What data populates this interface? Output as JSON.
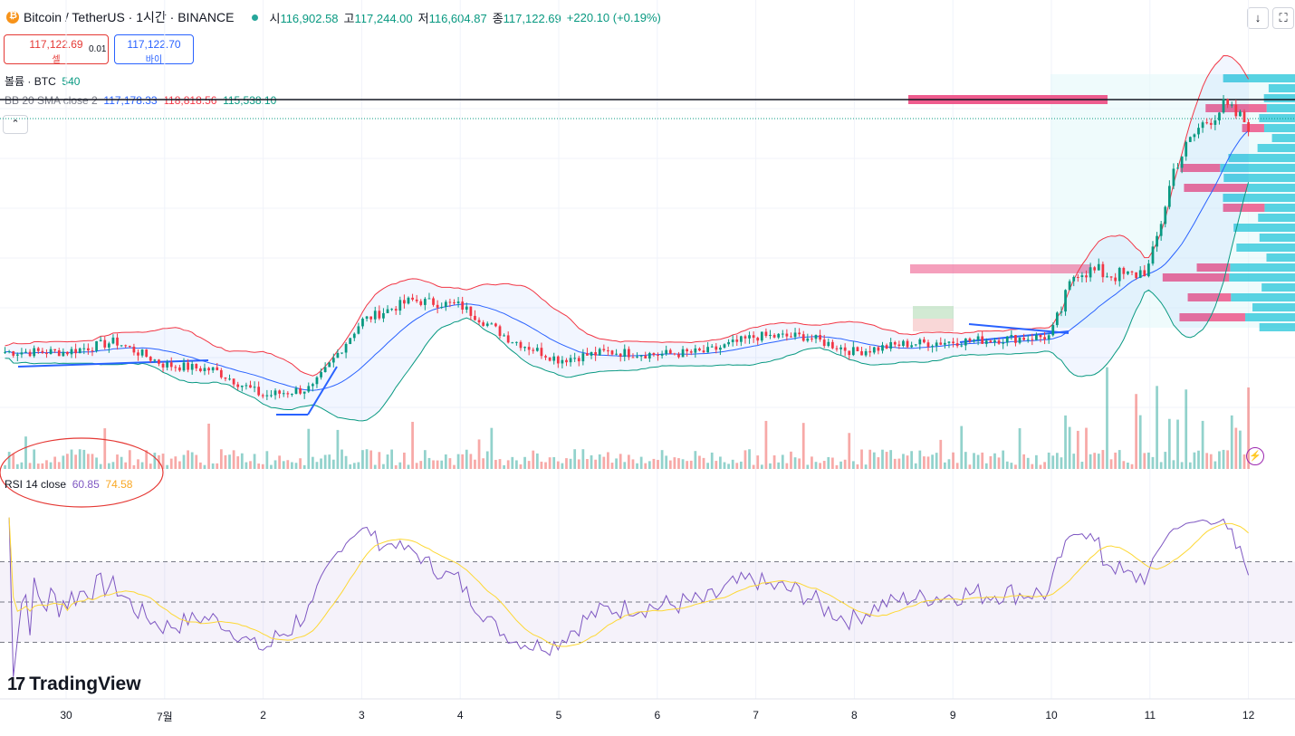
{
  "header": {
    "symbol": "Bitcoin / TetherUS · 1시간 · BINANCE",
    "open_label": "시",
    "open": "116,902.58",
    "high_label": "고",
    "high": "117,244.00",
    "low_label": "저",
    "low": "116,604.87",
    "close_label": "종",
    "close": "117,122.69",
    "change": "+220.10 (+0.19%)"
  },
  "trade": {
    "sell_price": "117,122.69",
    "sell_label": "셀",
    "spread": "0.01",
    "buy_price": "117,122.70",
    "buy_label": "바이"
  },
  "indicators": {
    "volume_label": "볼륨 · BTC",
    "volume_value": "540",
    "bb_label": "BB 20 SMA close 2",
    "bb_basis": "117,178.33",
    "bb_upper": "118,818.56",
    "bb_lower": "115,538.10",
    "rsi_label": "RSI 14 close",
    "rsi_value": "60.85",
    "rsi_ma": "74.58"
  },
  "icons": {
    "download": "download-icon",
    "fullscreen": "fullscreen-icon",
    "collapse": "chevron-up-icon",
    "flash": "lightning-icon"
  },
  "brand": {
    "name": "TradingView"
  },
  "colors": {
    "up": "#089981",
    "down": "#f23645",
    "bb_upper": "#f23645",
    "bb_lower": "#089981",
    "bb_basis": "#2962ff",
    "rsi": "#7e57c2",
    "rsi_ma": "#fdd835",
    "vp_up": "#26c6da",
    "vp_down": "#ec407a"
  },
  "chart_data": {
    "type": "candlestick",
    "x_ticks": [
      "30",
      "7월",
      "2",
      "3",
      "4",
      "5",
      "6",
      "7",
      "8",
      "9",
      "10",
      "11",
      "12"
    ],
    "price_anchor": [
      {
        "day": 0.0,
        "close": 108300
      },
      {
        "day": 0.5,
        "close": 108700
      },
      {
        "day": 1.0,
        "close": 107800
      },
      {
        "day": 1.5,
        "close": 107600
      },
      {
        "day": 2.0,
        "close": 106600
      },
      {
        "day": 2.5,
        "close": 106900
      },
      {
        "day": 3.0,
        "close": 109500
      },
      {
        "day": 3.5,
        "close": 110300
      },
      {
        "day": 4.0,
        "close": 110100
      },
      {
        "day": 4.5,
        "close": 108800
      },
      {
        "day": 5.0,
        "close": 108000
      },
      {
        "day": 5.5,
        "close": 108300
      },
      {
        "day": 6.0,
        "close": 108200
      },
      {
        "day": 6.5,
        "close": 108300
      },
      {
        "day": 7.0,
        "close": 108900
      },
      {
        "day": 7.5,
        "close": 108900
      },
      {
        "day": 8.0,
        "close": 108300
      },
      {
        "day": 8.5,
        "close": 108600
      },
      {
        "day": 9.0,
        "close": 108700
      },
      {
        "day": 9.5,
        "close": 108800
      },
      {
        "day": 10.0,
        "close": 108900
      },
      {
        "day": 10.25,
        "close": 111500
      },
      {
        "day": 10.8,
        "close": 111200
      },
      {
        "day": 11.0,
        "close": 111600
      },
      {
        "day": 11.25,
        "close": 115500
      },
      {
        "day": 11.5,
        "close": 117000
      },
      {
        "day": 11.75,
        "close": 117800
      },
      {
        "day": 12.0,
        "close": 117122.69
      }
    ],
    "rsi": {
      "period": 14,
      "last": 60.85,
      "ma_last": 74.58,
      "levels": [
        70,
        50,
        30
      ]
    },
    "bollinger": {
      "period": 20,
      "mult": 2,
      "basis": 117178.33,
      "upper": 118818.56,
      "lower": 115538.1
    }
  }
}
